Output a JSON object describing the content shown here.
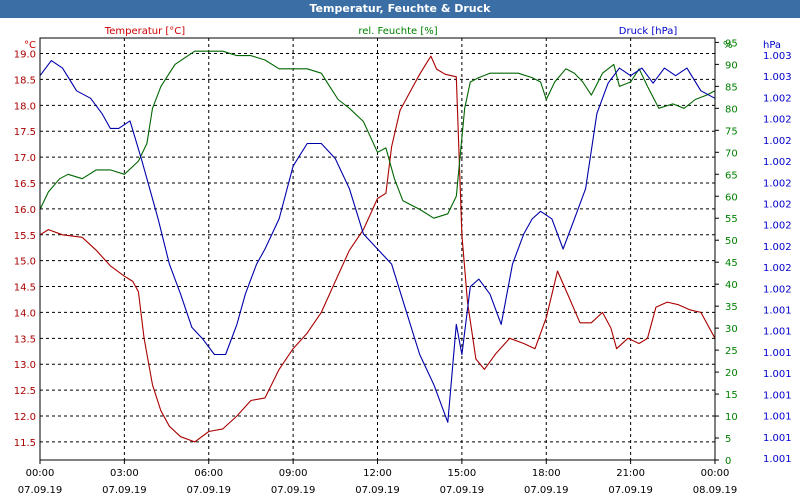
{
  "window": {
    "title": "Temperatur, Feuchte & Druck"
  },
  "chart_data": {
    "type": "line",
    "title": "Temperatur, Feuchte & Druck",
    "x_ticks": [
      {
        "time": "00:00",
        "date": "07.09.19"
      },
      {
        "time": "03:00",
        "date": "07.09.19"
      },
      {
        "time": "06:00",
        "date": "07.09.19"
      },
      {
        "time": "09:00",
        "date": "07.09.19"
      },
      {
        "time": "12:00",
        "date": "07.09.19"
      },
      {
        "time": "15:00",
        "date": "07.09.19"
      },
      {
        "time": "18:00",
        "date": "07.09.19"
      },
      {
        "time": "21:00",
        "date": "07.09.19"
      },
      {
        "time": "00:00",
        "date": "08.09.19"
      }
    ],
    "xlim": [
      0,
      24
    ],
    "axes": {
      "temperature": {
        "label": "Temperatur [°C]",
        "unit": "°C",
        "ylim": [
          11.15,
          19.3
        ],
        "ticks": [
          "11.5",
          "12.0",
          "12.5",
          "13.0",
          "13.5",
          "14.0",
          "14.5",
          "15.0",
          "15.5",
          "16.0",
          "16.5",
          "17.0",
          "17.5",
          "18.0",
          "18.5",
          "19.0"
        ],
        "color": "#cc0000"
      },
      "humidity": {
        "label": "rel. Feuchte [%]",
        "unit": "%",
        "ylim": [
          0,
          96
        ],
        "ticks": [
          "0",
          "5",
          "10",
          "15",
          "20",
          "25",
          "30",
          "35",
          "40",
          "45",
          "50",
          "55",
          "60",
          "65",
          "70",
          "75",
          "80",
          "85",
          "90",
          "95"
        ],
        "color": "#008000"
      },
      "pressure": {
        "label": "Druck [hPa]",
        "unit": "hPa",
        "ylim": [
          1.0005,
          1.0033
        ],
        "ticks": [
          "1.001",
          "1.001",
          "1.001",
          "1.001",
          "1.001",
          "1.001",
          "1.001",
          "1.001",
          "1.002",
          "1.002",
          "1.002",
          "1.002",
          "1.002",
          "1.002",
          "1.002",
          "1.002",
          "1.002",
          "1.002",
          "1.003",
          "1.003"
        ],
        "color": "#0000cc"
      }
    },
    "series": [
      {
        "name": "Temperatur [°C]",
        "axis": "temperature",
        "color": "#aa0000",
        "points": [
          [
            0,
            15.5
          ],
          [
            0.3,
            15.6
          ],
          [
            0.8,
            15.5
          ],
          [
            1.5,
            15.45
          ],
          [
            2,
            15.2
          ],
          [
            2.5,
            14.9
          ],
          [
            3,
            14.7
          ],
          [
            3.3,
            14.6
          ],
          [
            3.5,
            14.4
          ],
          [
            3.7,
            13.5
          ],
          [
            4,
            12.6
          ],
          [
            4.3,
            12.1
          ],
          [
            4.6,
            11.8
          ],
          [
            5,
            11.6
          ],
          [
            5.5,
            11.5
          ],
          [
            6,
            11.7
          ],
          [
            6.5,
            11.75
          ],
          [
            7,
            12.0
          ],
          [
            7.5,
            12.3
          ],
          [
            8,
            12.35
          ],
          [
            8.5,
            12.9
          ],
          [
            9,
            13.3
          ],
          [
            9.5,
            13.6
          ],
          [
            10,
            14.0
          ],
          [
            10.5,
            14.6
          ],
          [
            11,
            15.2
          ],
          [
            11.5,
            15.6
          ],
          [
            12,
            16.2
          ],
          [
            12.3,
            16.3
          ],
          [
            12.5,
            17.2
          ],
          [
            12.8,
            17.9
          ],
          [
            13.2,
            18.3
          ],
          [
            13.5,
            18.6
          ],
          [
            13.9,
            18.95
          ],
          [
            14.1,
            18.7
          ],
          [
            14.4,
            18.6
          ],
          [
            14.8,
            18.55
          ],
          [
            15,
            15.5
          ],
          [
            15.2,
            14.2
          ],
          [
            15.5,
            13.1
          ],
          [
            15.8,
            12.9
          ],
          [
            16.2,
            13.2
          ],
          [
            16.7,
            13.5
          ],
          [
            17.2,
            13.4
          ],
          [
            17.6,
            13.3
          ],
          [
            18,
            13.9
          ],
          [
            18.4,
            14.8
          ],
          [
            18.8,
            14.3
          ],
          [
            19.2,
            13.8
          ],
          [
            19.6,
            13.8
          ],
          [
            20,
            14.0
          ],
          [
            20.3,
            13.7
          ],
          [
            20.5,
            13.3
          ],
          [
            20.9,
            13.5
          ],
          [
            21.3,
            13.4
          ],
          [
            21.6,
            13.5
          ],
          [
            21.9,
            14.1
          ],
          [
            22.3,
            14.2
          ],
          [
            22.7,
            14.15
          ],
          [
            23.1,
            14.05
          ],
          [
            23.5,
            14.0
          ],
          [
            24,
            13.5
          ]
        ]
      },
      {
        "name": "rel. Feuchte [%]",
        "axis": "humidity",
        "color": "#006600",
        "points": [
          [
            0,
            57
          ],
          [
            0.3,
            61
          ],
          [
            0.7,
            64
          ],
          [
            1,
            65
          ],
          [
            1.5,
            64
          ],
          [
            2,
            66
          ],
          [
            2.5,
            66
          ],
          [
            3,
            65
          ],
          [
            3.5,
            68
          ],
          [
            3.8,
            72
          ],
          [
            4,
            80
          ],
          [
            4.3,
            85
          ],
          [
            4.8,
            90
          ],
          [
            5.5,
            93
          ],
          [
            6,
            93
          ],
          [
            6.5,
            93
          ],
          [
            7,
            92
          ],
          [
            7.5,
            92
          ],
          [
            8,
            91
          ],
          [
            8.5,
            89
          ],
          [
            9,
            89
          ],
          [
            9.5,
            89
          ],
          [
            10,
            88
          ],
          [
            10.3,
            85
          ],
          [
            10.6,
            82
          ],
          [
            11,
            80
          ],
          [
            11.5,
            77
          ],
          [
            12,
            70
          ],
          [
            12.3,
            71
          ],
          [
            12.6,
            64
          ],
          [
            12.9,
            59
          ],
          [
            13.2,
            58
          ],
          [
            13.5,
            57
          ],
          [
            14,
            55
          ],
          [
            14.5,
            56
          ],
          [
            14.8,
            60
          ],
          [
            15.1,
            80
          ],
          [
            15.3,
            86
          ],
          [
            15.6,
            87
          ],
          [
            16,
            88
          ],
          [
            16.5,
            88
          ],
          [
            17,
            88
          ],
          [
            17.5,
            87
          ],
          [
            17.8,
            86
          ],
          [
            18,
            82
          ],
          [
            18.3,
            86
          ],
          [
            18.7,
            89
          ],
          [
            19,
            88
          ],
          [
            19.3,
            86
          ],
          [
            19.6,
            83
          ],
          [
            20,
            88
          ],
          [
            20.4,
            90
          ],
          [
            20.6,
            85
          ],
          [
            21,
            86
          ],
          [
            21.3,
            89
          ],
          [
            21.6,
            85
          ],
          [
            22,
            80
          ],
          [
            22.5,
            81
          ],
          [
            22.9,
            80
          ],
          [
            23.3,
            82
          ],
          [
            23.7,
            83
          ],
          [
            24,
            84
          ]
        ]
      },
      {
        "name": "Druck [hPa]",
        "axis": "pressure",
        "color": "#0000aa",
        "points": [
          [
            0,
            1.00305
          ],
          [
            0.4,
            1.00315
          ],
          [
            0.8,
            1.0031
          ],
          [
            1.3,
            1.00295
          ],
          [
            1.8,
            1.0029
          ],
          [
            2.2,
            1.0028
          ],
          [
            2.5,
            1.0027
          ],
          [
            2.8,
            1.0027
          ],
          [
            3.2,
            1.00275
          ],
          [
            3.6,
            1.0025
          ],
          [
            3.9,
            1.0023
          ],
          [
            4.2,
            1.0021
          ],
          [
            4.6,
            1.0018
          ],
          [
            5,
            1.0016
          ],
          [
            5.4,
            1.00138
          ],
          [
            5.8,
            1.0013
          ],
          [
            6.2,
            1.0012
          ],
          [
            6.6,
            1.0012
          ],
          [
            7,
            1.0014
          ],
          [
            7.3,
            1.0016
          ],
          [
            7.7,
            1.0018
          ],
          [
            8,
            1.0019
          ],
          [
            8.5,
            1.0021
          ],
          [
            9,
            1.00245
          ],
          [
            9.5,
            1.0026
          ],
          [
            10,
            1.0026
          ],
          [
            10.5,
            1.0025
          ],
          [
            11,
            1.0023
          ],
          [
            11.5,
            1.002
          ],
          [
            12,
            1.0019
          ],
          [
            12.5,
            1.0018
          ],
          [
            13,
            1.0015
          ],
          [
            13.5,
            1.0012
          ],
          [
            14,
            1.001
          ],
          [
            14.3,
            1.00085
          ],
          [
            14.5,
            1.00075
          ],
          [
            14.8,
            1.0014
          ],
          [
            15,
            1.0012
          ],
          [
            15.3,
            1.00165
          ],
          [
            15.6,
            1.0017
          ],
          [
            16,
            1.0016
          ],
          [
            16.4,
            1.0014
          ],
          [
            16.8,
            1.0018
          ],
          [
            17.2,
            1.002
          ],
          [
            17.5,
            1.0021
          ],
          [
            17.8,
            1.00215
          ],
          [
            18.2,
            1.0021
          ],
          [
            18.6,
            1.0019
          ],
          [
            19,
            1.0021
          ],
          [
            19.4,
            1.0023
          ],
          [
            19.8,
            1.0028
          ],
          [
            20.2,
            1.003
          ],
          [
            20.6,
            1.0031
          ],
          [
            21,
            1.00305
          ],
          [
            21.4,
            1.0031
          ],
          [
            21.8,
            1.003
          ],
          [
            22.2,
            1.0031
          ],
          [
            22.6,
            1.00305
          ],
          [
            23,
            1.0031
          ],
          [
            23.5,
            1.00295
          ],
          [
            24,
            1.0029
          ]
        ]
      }
    ]
  }
}
